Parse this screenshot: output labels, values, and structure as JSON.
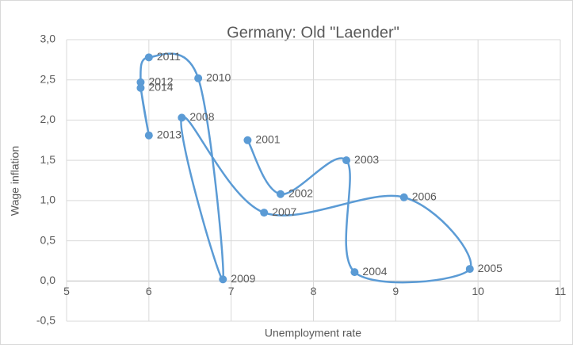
{
  "chart_data": {
    "type": "scatter",
    "title": "Germany: Old \"Laender\"",
    "x_label": "Unemployment rate",
    "y_label": "Wage inflation",
    "series": [
      {
        "name": "Germany",
        "color": "#5b9bd5",
        "x": [
          7.2,
          7.6,
          8.4,
          8.5,
          9.9,
          9.1,
          7.4,
          6.4,
          6.9,
          6.6,
          6.0,
          5.9,
          6.0,
          5.9
        ],
        "values": [
          1.75,
          1.08,
          1.5,
          0.11,
          0.15,
          1.04,
          0.85,
          2.03,
          0.02,
          2.52,
          2.78,
          2.47,
          1.81,
          2.4
        ],
        "labels": [
          "2001",
          "2002",
          "2003",
          "2004",
          "2005",
          "2006",
          "2007",
          "2008",
          "2009",
          "2010",
          "2011",
          "2012",
          "2013",
          "2014"
        ]
      }
    ],
    "xlim": [
      5,
      11
    ],
    "xticks": [
      5,
      6,
      7,
      8,
      9,
      10,
      11
    ],
    "ylim": [
      -0.5,
      3
    ],
    "yticks": [
      {
        "value": -0.5,
        "label": "-0,5"
      },
      {
        "value": 0,
        "label": "0,0"
      },
      {
        "value": 0.5,
        "label": "0,5"
      },
      {
        "value": 1,
        "label": "1,0"
      },
      {
        "value": 1.5,
        "label": "1,5"
      },
      {
        "value": 2,
        "label": "2,0"
      },
      {
        "value": 2.5,
        "label": "2,5"
      },
      {
        "value": 3,
        "label": "3,0"
      }
    ],
    "grid": true,
    "smooth": true
  }
}
